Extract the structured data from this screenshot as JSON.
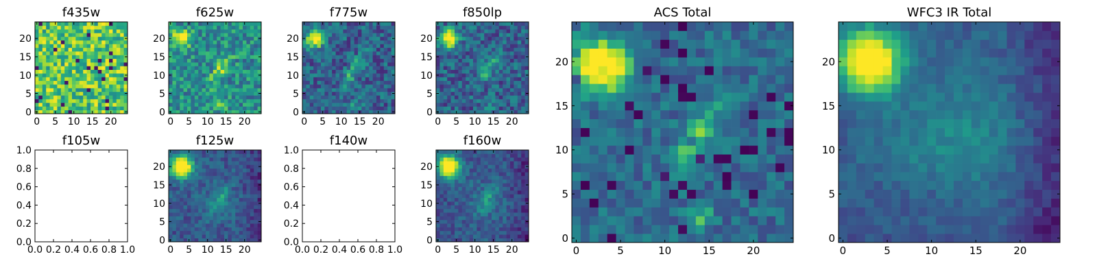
{
  "colormap": "viridis",
  "palette": [
    "#440154",
    "#3b528b",
    "#21918c",
    "#5ec962",
    "#fde725"
  ],
  "chart_data": [
    {
      "id": "f435w",
      "type": "heatmap",
      "title": "f435w",
      "pattern": "noise_high",
      "x_ticks": [
        "0",
        "5",
        "10",
        "15",
        "20"
      ],
      "y_ticks": [
        "0",
        "5",
        "10",
        "15",
        "20"
      ],
      "xlim": [
        -0.5,
        24.5
      ],
      "ylim": [
        -0.5,
        24.5
      ]
    },
    {
      "id": "f625w",
      "type": "heatmap",
      "title": "f625w",
      "pattern": "noise_sources",
      "x_ticks": [
        "0",
        "5",
        "10",
        "15",
        "20"
      ],
      "y_ticks": [
        "0",
        "5",
        "10",
        "15",
        "20"
      ],
      "xlim": [
        -0.5,
        24.5
      ],
      "ylim": [
        -0.5,
        24.5
      ]
    },
    {
      "id": "f775w",
      "type": "heatmap",
      "title": "f775w",
      "pattern": "sources",
      "x_ticks": [
        "0",
        "5",
        "10",
        "15",
        "20"
      ],
      "y_ticks": [
        "0",
        "5",
        "10",
        "15",
        "20"
      ],
      "xlim": [
        -0.5,
        24.5
      ],
      "ylim": [
        -0.5,
        24.5
      ]
    },
    {
      "id": "f850lp",
      "type": "heatmap",
      "title": "f850lp",
      "pattern": "sources",
      "x_ticks": [
        "0",
        "5",
        "10",
        "15",
        "20"
      ],
      "y_ticks": [
        "0",
        "5",
        "10",
        "15",
        "20"
      ],
      "xlim": [
        -0.5,
        24.5
      ],
      "ylim": [
        -0.5,
        24.5
      ]
    },
    {
      "id": "f105w",
      "type": "empty",
      "title": "f105w",
      "x_ticks": [
        "0.0",
        "0.2",
        "0.4",
        "0.6",
        "0.8",
        "1.0"
      ],
      "y_ticks": [
        "0.0",
        "0.2",
        "0.4",
        "0.6",
        "0.8",
        "1.0"
      ],
      "xlim": [
        0,
        1
      ],
      "ylim": [
        0,
        1
      ]
    },
    {
      "id": "f125w",
      "type": "heatmap",
      "title": "f125w",
      "pattern": "ir",
      "x_ticks": [
        "0",
        "5",
        "10",
        "15",
        "20"
      ],
      "y_ticks": [
        "0",
        "5",
        "10",
        "15",
        "20"
      ],
      "xlim": [
        -0.5,
        24.5
      ],
      "ylim": [
        -0.5,
        24.5
      ]
    },
    {
      "id": "f140w",
      "type": "empty",
      "title": "f140w",
      "x_ticks": [
        "0.0",
        "0.2",
        "0.4",
        "0.6",
        "0.8",
        "1.0"
      ],
      "y_ticks": [
        "0.0",
        "0.2",
        "0.4",
        "0.6",
        "0.8",
        "1.0"
      ],
      "xlim": [
        0,
        1
      ],
      "ylim": [
        0,
        1
      ]
    },
    {
      "id": "f160w",
      "type": "heatmap",
      "title": "f160w",
      "pattern": "ir",
      "x_ticks": [
        "0",
        "5",
        "10",
        "15",
        "20"
      ],
      "y_ticks": [
        "0",
        "5",
        "10",
        "15",
        "20"
      ],
      "xlim": [
        -0.5,
        24.5
      ],
      "ylim": [
        -0.5,
        24.5
      ]
    },
    {
      "id": "acs_total",
      "type": "heatmap",
      "title": "ACS Total",
      "pattern": "acs",
      "x_ticks": [
        "0",
        "5",
        "10",
        "15",
        "20"
      ],
      "y_ticks": [
        "0",
        "5",
        "10",
        "15",
        "20"
      ],
      "xlim": [
        -0.5,
        24.5
      ],
      "ylim": [
        -0.5,
        24.5
      ]
    },
    {
      "id": "wfc3_total",
      "type": "heatmap",
      "title": "WFC3 IR Total",
      "pattern": "ir_total",
      "x_ticks": [
        "0",
        "5",
        "10",
        "15",
        "20"
      ],
      "y_ticks": [
        "0",
        "5",
        "10",
        "15",
        "20"
      ],
      "xlim": [
        -0.5,
        24.5
      ],
      "ylim": [
        -0.5,
        24.5
      ]
    }
  ]
}
